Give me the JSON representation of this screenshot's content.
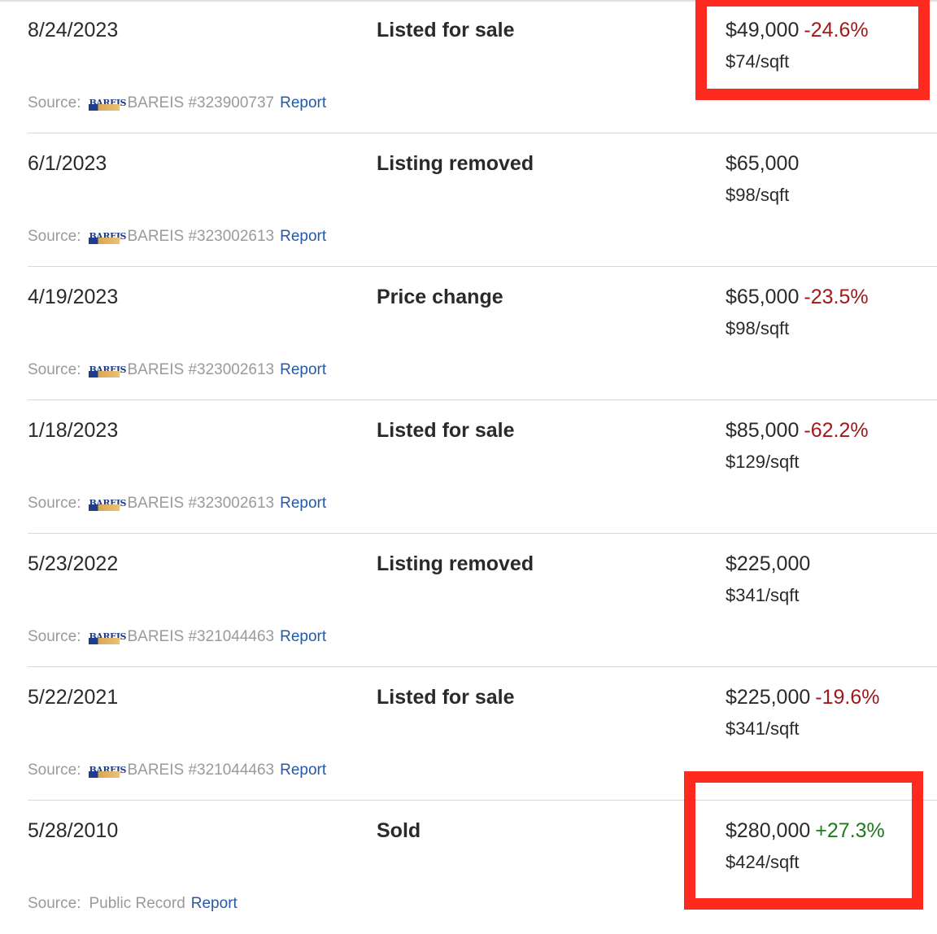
{
  "history": {
    "rows": [
      {
        "date": "8/24/2023",
        "event": "Listed for sale",
        "price": "$49,000",
        "change": "-24.6%",
        "change_dir": "neg",
        "sqft": "$74/sqft",
        "source_label": "Source:",
        "source_id": "BAREIS #323900737",
        "report": "Report",
        "has_logo": true
      },
      {
        "date": "6/1/2023",
        "event": "Listing removed",
        "price": "$65,000",
        "change": "",
        "change_dir": "",
        "sqft": "$98/sqft",
        "source_label": "Source:",
        "source_id": "BAREIS #323002613",
        "report": "Report",
        "has_logo": true
      },
      {
        "date": "4/19/2023",
        "event": "Price change",
        "price": "$65,000",
        "change": "-23.5%",
        "change_dir": "neg",
        "sqft": "$98/sqft",
        "source_label": "Source:",
        "source_id": "BAREIS #323002613",
        "report": "Report",
        "has_logo": true
      },
      {
        "date": "1/18/2023",
        "event": "Listed for sale",
        "price": "$85,000",
        "change": "-62.2%",
        "change_dir": "neg",
        "sqft": "$129/sqft",
        "source_label": "Source:",
        "source_id": "BAREIS #323002613",
        "report": "Report",
        "has_logo": true
      },
      {
        "date": "5/23/2022",
        "event": "Listing removed",
        "price": "$225,000",
        "change": "",
        "change_dir": "",
        "sqft": "$341/sqft",
        "source_label": "Source:",
        "source_id": "BAREIS #321044463",
        "report": "Report",
        "has_logo": true
      },
      {
        "date": "5/22/2021",
        "event": "Listed for sale",
        "price": "$225,000",
        "change": "-19.6%",
        "change_dir": "neg",
        "sqft": "$341/sqft",
        "source_label": "Source:",
        "source_id": "BAREIS #321044463",
        "report": "Report",
        "has_logo": true
      },
      {
        "date": "5/28/2010",
        "event": "Sold",
        "price": "$280,000",
        "change": "+27.3%",
        "change_dir": "pos",
        "sqft": "$424/sqft",
        "source_label": "Source:",
        "source_id": "Public Record",
        "report": "Report",
        "has_logo": false
      }
    ]
  },
  "logo": {
    "text": "BAREIS",
    "icon": "bareis-logo-icon"
  },
  "colors": {
    "negative_change": "#a01a1a",
    "positive_change": "#1d7a1d",
    "link": "#2559a8",
    "highlight": "#ff2a1f"
  }
}
